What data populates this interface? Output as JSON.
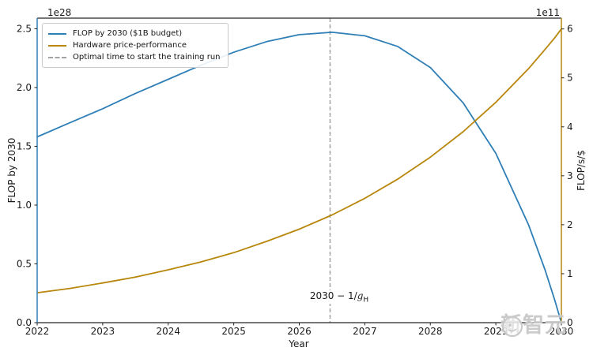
{
  "figure": {
    "xlabel": "Year",
    "ylabel_left": "FLOP by 2030",
    "ylabel_right": "FLOP/s/$",
    "offset_left": "1e28",
    "offset_right": "1e11",
    "watermark_text": "新智元"
  },
  "legend": {
    "items": [
      {
        "label": "FLOP by 2030 ($1B budget)",
        "style": "solid",
        "color": "#2f7fb6"
      },
      {
        "label": "Hardware price-performance",
        "style": "solid",
        "color": "#b8860b"
      },
      {
        "label": "Optimal time to start the training run",
        "style": "dashed",
        "color": "#a3a3a3"
      }
    ]
  },
  "annotation": {
    "prefix": "2030 − 1/",
    "var": "g",
    "sub": "H"
  },
  "chart_data": {
    "type": "line",
    "title": "",
    "xlabel": "Year",
    "grid": false,
    "legend_position": "upper left",
    "xlim": [
      2022,
      2030
    ],
    "x_ticks": [
      "2022",
      "2023",
      "2024",
      "2025",
      "2026",
      "2027",
      "2028",
      "2029",
      "2030"
    ],
    "axes": {
      "left": {
        "label": "FLOP by 2030",
        "offset": "1e28",
        "lim": [
          0,
          2.59
        ],
        "ticks": [
          0.0,
          0.5,
          1.0,
          1.5,
          2.0,
          2.5
        ],
        "tick_labels": [
          "0.0",
          "0.5",
          "1.0",
          "1.5",
          "2.0",
          "2.5"
        ],
        "color": "#2f7fb6"
      },
      "right": {
        "label": "FLOP/s/$",
        "offset": "1e11",
        "lim": [
          0,
          6.22
        ],
        "ticks": [
          0,
          1,
          2,
          3,
          4,
          5,
          6
        ],
        "tick_labels": [
          "0",
          "1",
          "2",
          "3",
          "4",
          "5",
          "6"
        ],
        "color": "#b8860b"
      }
    },
    "x": [
      2022,
      2022.5,
      2023,
      2023.5,
      2024,
      2024.5,
      2025,
      2025.5,
      2026,
      2026.5,
      2027,
      2027.5,
      2028,
      2028.5,
      2029,
      2029.5,
      2029.75,
      2029.9,
      2030
    ],
    "series": [
      {
        "name": "FLOP by 2030 ($1B budget)",
        "axis": "left",
        "color": "#2f7fb6",
        "unit": "1e28 FLOP",
        "values": [
          1.58,
          1.7,
          1.82,
          1.95,
          2.07,
          2.19,
          2.3,
          2.39,
          2.45,
          2.47,
          2.44,
          2.35,
          2.17,
          1.87,
          1.44,
          0.83,
          0.45,
          0.19,
          0.0
        ]
      },
      {
        "name": "Hardware price-performance",
        "axis": "right",
        "color": "#b8860b",
        "unit": "1e11 FLOP/s/$",
        "values": [
          0.61,
          0.7,
          0.81,
          0.93,
          1.08,
          1.24,
          1.43,
          1.66,
          1.91,
          2.2,
          2.54,
          2.93,
          3.38,
          3.9,
          4.5,
          5.19,
          5.58,
          5.82,
          6.0
        ]
      }
    ],
    "vline": {
      "x": 2026.47,
      "label": "2030 − 1/g_H",
      "color": "#a3a3a3",
      "style": "dashed"
    }
  }
}
